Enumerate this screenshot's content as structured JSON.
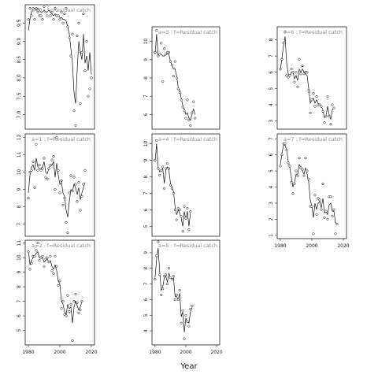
{
  "figure": {
    "xlabel": "Year"
  },
  "chart_data": [
    {
      "type": "line",
      "label": "a=0 : f=Residual catch",
      "xlim": [
        1978,
        2022
      ],
      "ylim": [
        6.6,
        10.0
      ],
      "yticks": [
        7.0,
        7.5,
        8.0,
        8.5,
        9.0,
        9.5
      ],
      "yfmt": 1,
      "xticks": [],
      "x": [
        1980,
        1981,
        1982,
        1983,
        1984,
        1985,
        1986,
        1987,
        1988,
        1989,
        1990,
        1991,
        1992,
        1993,
        1994,
        1995,
        1996,
        1997,
        1998,
        1999,
        2000,
        2001,
        2002,
        2003,
        2004,
        2005,
        2006,
        2007,
        2008,
        2009,
        2010,
        2011,
        2012,
        2013,
        2014,
        2015,
        2016,
        2017,
        2018,
        2019,
        2020
      ],
      "points": [
        9.6,
        9.9,
        9.7,
        9.9,
        9.6,
        9.9,
        9.8,
        9.7,
        9.7,
        9.6,
        9.95,
        9.8,
        9.7,
        10.0,
        9.7,
        9.8,
        9.6,
        9.9,
        9.7,
        9.7,
        9.6,
        9.8,
        9.5,
        9.75,
        9.9,
        9.4,
        9.1,
        8.6,
        9.2,
        7.1,
        6.7,
        9.15,
        9.5,
        7.3,
        8.7,
        9.75,
        8.2,
        9.0,
        7.5,
        7.7,
        8.0
      ],
      "line": [
        9.3,
        9.6,
        9.8,
        9.9,
        9.9,
        9.85,
        9.9,
        9.85,
        9.8,
        9.8,
        9.85,
        9.8,
        9.8,
        9.85,
        9.8,
        9.75,
        9.7,
        9.75,
        9.7,
        9.7,
        9.65,
        9.65,
        9.6,
        9.6,
        9.55,
        9.4,
        9.2,
        8.8,
        8.4,
        7.6,
        7.3,
        8.2,
        9.0,
        8.7,
        8.5,
        9.2,
        8.4,
        8.6,
        8.2,
        8.7,
        8.1
      ]
    },
    {
      "type": "line",
      "label": "a=1 : f=Residual catch",
      "xlim": [
        1978,
        2022
      ],
      "ylim": [
        6.3,
        12.2
      ],
      "yticks": [
        7,
        8,
        9,
        10,
        11,
        12
      ],
      "yfmt": 0,
      "xticks": [],
      "x": [
        1980,
        1981,
        1982,
        1983,
        1984,
        1985,
        1986,
        1987,
        1988,
        1989,
        1990,
        1991,
        1992,
        1993,
        1994,
        1995,
        1996,
        1997,
        1998,
        1999,
        2000,
        2001,
        2002,
        2003,
        2004,
        2005,
        2006,
        2007,
        2008,
        2009,
        2010,
        2011,
        2012,
        2013,
        2014,
        2015,
        2016,
        2017,
        2018,
        2019,
        2020
      ],
      "points": [
        8.5,
        10.0,
        10.1,
        10.6,
        9.1,
        11.6,
        10.1,
        10.4,
        10.1,
        10.2,
        10.8,
        9.7,
        9.6,
        10.2,
        10.4,
        10.7,
        10.9,
        9.0,
        12.0,
        10.1,
        8.8,
        9.5,
        8.1,
        8.5,
        7.1,
        6.5,
        8.8,
        9.8,
        8.9,
        9.7,
        9.3,
        8.3,
        9.4,
        7.8,
        8.6,
        9.3,
        10.1,
        null,
        null,
        null,
        null
      ],
      "line": [
        8.8,
        9.8,
        10.3,
        10.4,
        10.1,
        10.8,
        10.3,
        10.2,
        10.2,
        10.3,
        10.6,
        10.0,
        9.9,
        10.2,
        10.4,
        10.4,
        10.6,
        9.7,
        10.5,
        9.8,
        9.3,
        9.4,
        8.8,
        8.6,
        7.8,
        7.4,
        8.3,
        9.0,
        8.9,
        9.3,
        9.1,
        8.7,
        9.1,
        8.4,
        8.8,
        9.1,
        9.4,
        null,
        null,
        null,
        null
      ]
    },
    {
      "type": "line",
      "label": "a=2 : f=Residual catch",
      "xlim": [
        1978,
        2022
      ],
      "ylim": [
        4.0,
        11.2
      ],
      "yticks": [
        5,
        6,
        7,
        8,
        9,
        10,
        11
      ],
      "yfmt": 0,
      "xticks": [
        1980,
        2000,
        2020
      ],
      "x": [
        1980,
        1981,
        1982,
        1983,
        1984,
        1985,
        1986,
        1987,
        1988,
        1989,
        1990,
        1991,
        1992,
        1993,
        1994,
        1995,
        1996,
        1997,
        1998,
        1999,
        2000,
        2001,
        2002,
        2003,
        2004,
        2005,
        2006,
        2007,
        2008,
        2009,
        2010,
        2011,
        2012,
        2013,
        2014,
        2015,
        2016,
        2017,
        2018,
        2019,
        2020
      ],
      "points": [
        10.4,
        9.2,
        9.6,
        10.1,
        10.1,
        10.5,
        11.0,
        9.8,
        10.0,
        10.1,
        9.4,
        9.9,
        10.0,
        9.7,
        10.1,
        9.1,
        8.9,
        10.1,
        9.4,
        8.1,
        8.4,
        6.5,
        7.0,
        6.1,
        6.0,
        7.4,
        6.3,
        6.8,
        4.3,
        7.0,
        7.5,
        6.9,
        6.2,
        6.4,
        7.0,
        null,
        null,
        null,
        null,
        null,
        null
      ],
      "line": [
        10.5,
        9.5,
        9.8,
        10.0,
        10.1,
        10.3,
        10.4,
        10.0,
        10.0,
        10.0,
        9.7,
        9.8,
        9.9,
        9.7,
        9.8,
        9.4,
        9.2,
        9.5,
        9.1,
        8.4,
        8.2,
        7.0,
        6.8,
        6.3,
        6.1,
        6.8,
        6.5,
        6.6,
        5.5,
        6.6,
        7.0,
        6.7,
        6.4,
        6.6,
        7.0,
        null,
        null,
        null,
        null,
        null,
        null
      ]
    },
    {
      "type": "line",
      "label": "a=3 : f=Residual catch",
      "xlim": [
        1978,
        2022
      ],
      "ylim": [
        5.2,
        10.8
      ],
      "yticks": [
        6,
        7,
        8,
        9,
        10
      ],
      "yfmt": 0,
      "xticks": [],
      "x": [
        1980,
        1981,
        1982,
        1983,
        1984,
        1985,
        1986,
        1987,
        1988,
        1989,
        1990,
        1991,
        1992,
        1993,
        1994,
        1995,
        1996,
        1997,
        1998,
        1999,
        2000,
        2001,
        2002,
        2003,
        2004,
        2005,
        2006,
        2007,
        2008,
        2009,
        2010,
        2011,
        2012,
        2013,
        2014,
        2015,
        2016,
        2017,
        2018,
        2019,
        2020
      ],
      "points": [
        9.4,
        10.6,
        9.2,
        9.3,
        9.9,
        7.8,
        9.6,
        9.3,
        9.4,
        9.4,
        8.9,
        8.7,
        8.1,
        8.9,
        8.0,
        7.4,
        7.2,
        6.8,
        6.4,
        6.2,
        5.8,
        6.8,
        5.7,
        5.4,
        6.1,
        6.7,
        5.8,
        null,
        null,
        null,
        null,
        null,
        null,
        null,
        null,
        null,
        null,
        null,
        null,
        null,
        null
      ],
      "line": [
        9.3,
        10.4,
        9.2,
        9.3,
        9.3,
        9.2,
        9.2,
        9.3,
        9.3,
        9.3,
        8.9,
        8.7,
        8.5,
        8.5,
        8.1,
        7.5,
        7.3,
        6.9,
        6.5,
        6.3,
        6.0,
        6.1,
        5.8,
        5.7,
        6.0,
        6.3,
        6.0,
        null,
        null,
        null,
        null,
        null,
        null,
        null,
        null,
        null,
        null,
        null,
        null,
        null,
        null
      ]
    },
    {
      "type": "line",
      "label": "a=4 : f=Residual catch",
      "xlim": [
        1978,
        2022
      ],
      "ylim": [
        4.4,
        10.6
      ],
      "yticks": [
        5,
        6,
        7,
        8,
        9,
        10
      ],
      "yfmt": 0,
      "xticks": [],
      "x": [
        1980,
        1981,
        1982,
        1983,
        1984,
        1985,
        1986,
        1987,
        1988,
        1989,
        1990,
        1991,
        1992,
        1993,
        1994,
        1995,
        1996,
        1997,
        1998,
        1999,
        2000,
        2001,
        2002,
        2003,
        2004,
        2005,
        2006,
        2007,
        2008,
        2009,
        2010,
        2011,
        2012,
        2013,
        2014,
        2015,
        2016,
        2017,
        2018,
        2019,
        2020
      ],
      "points": [
        9.0,
        10.2,
        8.5,
        8.1,
        8.4,
        8.6,
        7.3,
        8.5,
        8.8,
        8.5,
        7.5,
        7.3,
        7.0,
        6.0,
        5.4,
        6.1,
        6.0,
        5.6,
        4.7,
        6.2,
        5.5,
        6.1,
        4.8,
        5.9,
        null,
        null,
        null,
        null,
        null,
        null,
        null,
        null,
        null,
        null,
        null,
        null,
        null,
        null,
        null,
        null,
        null
      ],
      "line": [
        8.9,
        10.0,
        8.6,
        8.3,
        8.4,
        8.5,
        7.6,
        8.4,
        8.6,
        8.4,
        7.6,
        7.4,
        7.1,
        6.2,
        5.7,
        6.0,
        5.8,
        5.5,
        5.0,
        5.9,
        5.4,
        5.9,
        5.0,
        5.8,
        null,
        null,
        null,
        null,
        null,
        null,
        null,
        null,
        null,
        null,
        null,
        null,
        null,
        null,
        null,
        null,
        null
      ]
    },
    {
      "type": "line",
      "label": "a=5 : f=Residual catch",
      "xlim": [
        1978,
        2022
      ],
      "ylim": [
        3.1,
        9.8
      ],
      "yticks": [
        4,
        5,
        6,
        7,
        8,
        9
      ],
      "yfmt": 0,
      "xticks": [
        1980,
        2000,
        2020
      ],
      "x": [
        1980,
        1981,
        1982,
        1983,
        1984,
        1985,
        1986,
        1987,
        1988,
        1989,
        1990,
        1991,
        1992,
        1993,
        1994,
        1995,
        1996,
        1997,
        1998,
        1999,
        2000,
        2001,
        2002,
        2003,
        2004,
        2005,
        2006,
        2007,
        2008,
        2009,
        2010,
        2011,
        2012,
        2013,
        2014,
        2015,
        2016,
        2017,
        2018,
        2019,
        2020
      ],
      "points": [
        7.3,
        8.8,
        9.7,
        7.6,
        6.3,
        6.7,
        7.5,
        7.6,
        7.0,
        8.0,
        7.4,
        7.3,
        7.5,
        6.0,
        6.3,
        6.0,
        6.6,
        4.5,
        5.3,
        3.5,
        5.0,
        4.6,
        4.3,
        5.4,
        5.6,
        null,
        null,
        null,
        null,
        null,
        null,
        null,
        null,
        null,
        null,
        null,
        null,
        null,
        null,
        null,
        null
      ],
      "line": [
        7.4,
        8.6,
        9.3,
        7.8,
        6.6,
        6.8,
        7.4,
        7.5,
        7.1,
        7.7,
        7.4,
        7.3,
        7.4,
        6.2,
        6.2,
        6.0,
        6.4,
        4.9,
        5.2,
        3.9,
        4.8,
        4.6,
        4.5,
        5.2,
        5.5,
        null,
        null,
        null,
        null,
        null,
        null,
        null,
        null,
        null,
        null,
        null,
        null,
        null,
        null,
        null,
        null
      ]
    },
    {
      "type": "line",
      "label": "a=6 : f=Residual catch",
      "xlim": [
        1978,
        2022
      ],
      "ylim": [
        2.5,
        8.8
      ],
      "yticks": [
        3,
        4,
        5,
        6,
        7,
        8
      ],
      "yfmt": 0,
      "xticks": [],
      "x": [
        1980,
        1981,
        1982,
        1983,
        1984,
        1985,
        1986,
        1987,
        1988,
        1989,
        1990,
        1991,
        1992,
        1993,
        1994,
        1995,
        1996,
        1997,
        1998,
        1999,
        2000,
        2001,
        2002,
        2003,
        2004,
        2005,
        2006,
        2007,
        2008,
        2009,
        2010,
        2011,
        2012,
        2013,
        2014,
        2015,
        2016,
        2017,
        2018,
        2019,
        2020
      ],
      "points": [
        6.2,
        6.8,
        7.8,
        8.5,
        5.8,
        5.7,
        5.8,
        6.2,
        6.0,
        5.4,
        6.0,
        5.1,
        6.8,
        5.9,
        6.4,
        5.9,
        6.0,
        6.0,
        4.9,
        3.5,
        4.3,
        4.7,
        3.9,
        4.5,
        4.0,
        4.0,
        3.9,
        3.6,
        2.9,
        3.3,
        4.5,
        3.3,
        2.8,
        4.0,
        3.8,
        null,
        null,
        null,
        null,
        null,
        null
      ],
      "line": [
        6.1,
        6.9,
        7.6,
        8.2,
        6.6,
        5.9,
        5.8,
        6.0,
        6.0,
        5.6,
        5.8,
        5.5,
        6.2,
        6.0,
        6.2,
        6.0,
        5.9,
        5.8,
        5.0,
        4.1,
        4.3,
        4.4,
        4.1,
        4.3,
        4.1,
        4.0,
        3.9,
        3.7,
        3.2,
        3.3,
        3.9,
        3.4,
        3.1,
        3.7,
        3.8,
        null,
        null,
        null,
        null,
        null,
        null
      ]
    },
    {
      "type": "line",
      "label": "a=7 : f=Residual catch",
      "xlim": [
        1978,
        2022
      ],
      "ylim": [
        0.8,
        7.3
      ],
      "yticks": [
        1,
        2,
        3,
        4,
        5,
        6,
        7
      ],
      "yfmt": 0,
      "xticks": [
        1980,
        2000,
        2020
      ],
      "x": [
        1980,
        1981,
        1982,
        1983,
        1984,
        1985,
        1986,
        1987,
        1988,
        1989,
        1990,
        1991,
        1992,
        1993,
        1994,
        1995,
        1996,
        1997,
        1998,
        1999,
        2000,
        2001,
        2002,
        2003,
        2004,
        2005,
        2006,
        2007,
        2008,
        2009,
        2010,
        2011,
        2012,
        2013,
        2014,
        2015,
        2016,
        2017,
        2018,
        2019,
        2020
      ],
      "points": [
        5.3,
        6.0,
        6.7,
        6.7,
        6.3,
        5.5,
        5.3,
        4.3,
        3.6,
        4.2,
        5.0,
        4.7,
        5.8,
        5.2,
        5.1,
        4.7,
        5.8,
        5.0,
        4.5,
        2.8,
        2.8,
        1.1,
        3.5,
        2.3,
        3.3,
        3.2,
        2.6,
        4.2,
        2.1,
        2.5,
        2.0,
        3.4,
        3.4,
        2.2,
        2.6,
        1.1,
        1.7,
        null,
        null,
        null,
        null
      ],
      "line": [
        5.4,
        6.1,
        6.6,
        6.6,
        6.3,
        5.6,
        5.2,
        4.6,
        4.0,
        4.3,
        4.8,
        4.8,
        5.4,
        5.2,
        5.0,
        4.8,
        5.2,
        4.8,
        4.3,
        3.2,
        2.8,
        2.1,
        3.0,
        2.6,
        3.0,
        3.1,
        2.7,
        3.3,
        2.4,
        2.5,
        2.3,
        2.9,
        3.0,
        2.5,
        2.5,
        1.8,
        1.7,
        null,
        null,
        null,
        null
      ]
    }
  ]
}
